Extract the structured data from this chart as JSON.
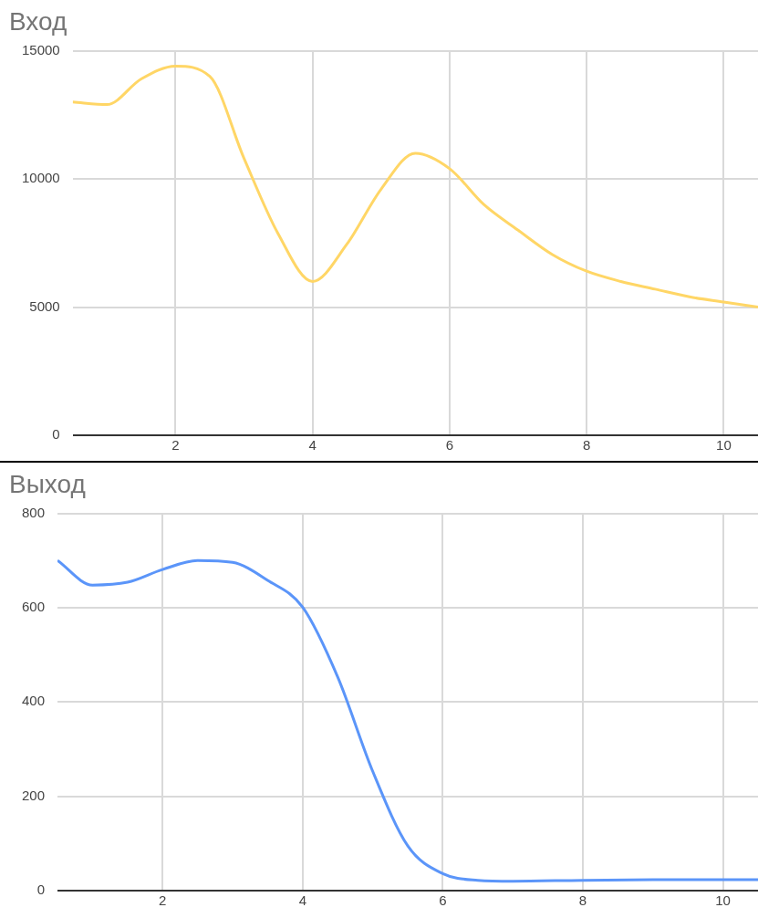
{
  "chart_data": [
    {
      "type": "line",
      "title": "Вход",
      "x": [
        0.5,
        1,
        1.5,
        2,
        2.5,
        3,
        3.5,
        4,
        4.5,
        5,
        5.5,
        6,
        6.5,
        7,
        7.5,
        8,
        8.5,
        9,
        9.5,
        10,
        10.5
      ],
      "series": [
        {
          "color": "#ffd666",
          "values": [
            13000,
            12900,
            13900,
            14400,
            14000,
            10800,
            7850,
            6000,
            7450,
            9600,
            11000,
            10400,
            9000,
            8000,
            7050,
            6400,
            6000,
            5700,
            5400,
            5200,
            5000
          ]
        }
      ],
      "xlim": [
        0.5,
        10.5
      ],
      "ylim": [
        0,
        15000
      ],
      "xticks": [
        2,
        4,
        6,
        8,
        10
      ],
      "yticks": [
        0,
        5000,
        10000,
        15000
      ],
      "grid": true,
      "marker": "none"
    },
    {
      "type": "line",
      "title": "Выход",
      "x": [
        0.5,
        1,
        1.5,
        2,
        2.5,
        3,
        3.5,
        4,
        4.5,
        5,
        5.5,
        6,
        6.5,
        7,
        8,
        9,
        10,
        10.5
      ],
      "series": [
        {
          "color": "#5b95f9",
          "values": [
            700,
            648,
            654,
            681,
            700,
            696,
            658,
            601,
            453,
            253,
            95,
            36,
            22,
            20,
            22,
            23,
            23,
            23
          ]
        }
      ],
      "xlim": [
        0.5,
        10.5
      ],
      "ylim": [
        0,
        800
      ],
      "xticks": [
        2,
        4,
        6,
        8,
        10
      ],
      "yticks": [
        0,
        200,
        400,
        600,
        800
      ],
      "grid": true,
      "marker": "none"
    }
  ]
}
